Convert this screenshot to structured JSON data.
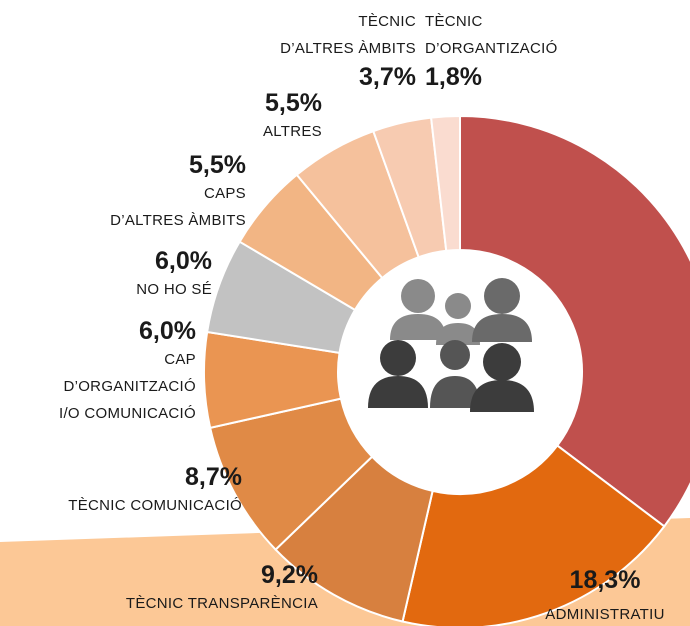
{
  "chart_data": {
    "type": "pie",
    "donut": true,
    "categories": [
      null,
      "ADMINISTRATIU",
      "TÈCNIC TRANSPARÈNCIA",
      "TÈCNIC COMUNICACIÓ",
      "CAP\nD’ORGANITZACIÓ\nI/O COMUNICACIÓ",
      "NO HO SÉ",
      "CAPS\nD’ALTRES ÀMBITS",
      "ALTRES",
      "TÈCNIC\nD’ALTRES ÀMBITS",
      "TÈCNIC\nD’ORGANTIZACIÓ"
    ],
    "values": [
      35.3,
      18.3,
      9.2,
      8.7,
      6.0,
      6.0,
      5.5,
      5.5,
      3.7,
      1.8
    ],
    "value_labels": [
      null,
      "18,3%",
      "9,2%",
      "8,7%",
      "6,0%",
      "6,0%",
      "5,5%",
      "5,5%",
      "3,7%",
      "1,8%"
    ],
    "colors": [
      "#c0504d",
      "#e2690f",
      "#d7803f",
      "#e08a46",
      "#ea9552",
      "#c2c2c2",
      "#f2b584",
      "#f5c19c",
      "#f7cbb1",
      "#fadcd0"
    ]
  }
}
